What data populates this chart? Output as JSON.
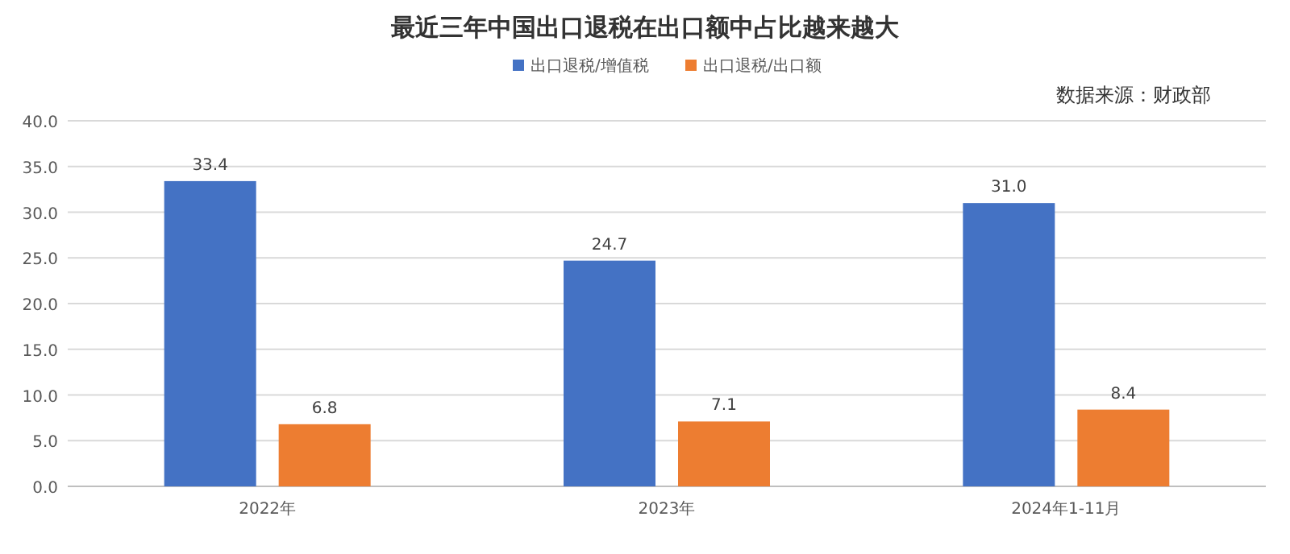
{
  "chart_data": {
    "type": "bar",
    "title": "最近三年中国出口退税在出口额中占比越来越大",
    "categories": [
      "2022年",
      "2023年",
      "2024年1-11月"
    ],
    "series": [
      {
        "name": "出口退税/增值税",
        "color": "#4472c4",
        "values": [
          33.4,
          24.7,
          31.0
        ],
        "value_labels": [
          "33.4",
          "24.7",
          "31.0"
        ]
      },
      {
        "name": "出口退税/出口额",
        "color": "#ed7d31",
        "values": [
          6.8,
          7.1,
          8.4
        ],
        "value_labels": [
          "6.8",
          "7.1",
          "8.4"
        ]
      }
    ],
    "ylim": [
      0,
      40
    ],
    "yticks": [
      {
        "value": 0,
        "label": "0.0"
      },
      {
        "value": 5,
        "label": "5.0"
      },
      {
        "value": 10,
        "label": "10.0"
      },
      {
        "value": 15,
        "label": "15.0"
      },
      {
        "value": 20,
        "label": "20.0"
      },
      {
        "value": 25,
        "label": "25.0"
      },
      {
        "value": 30,
        "label": "30.0"
      },
      {
        "value": 35,
        "label": "35.0"
      },
      {
        "value": 40,
        "label": "40.0"
      }
    ],
    "grid": "y",
    "legend": "top",
    "annotations": [
      "数据来源：财政部"
    ]
  }
}
